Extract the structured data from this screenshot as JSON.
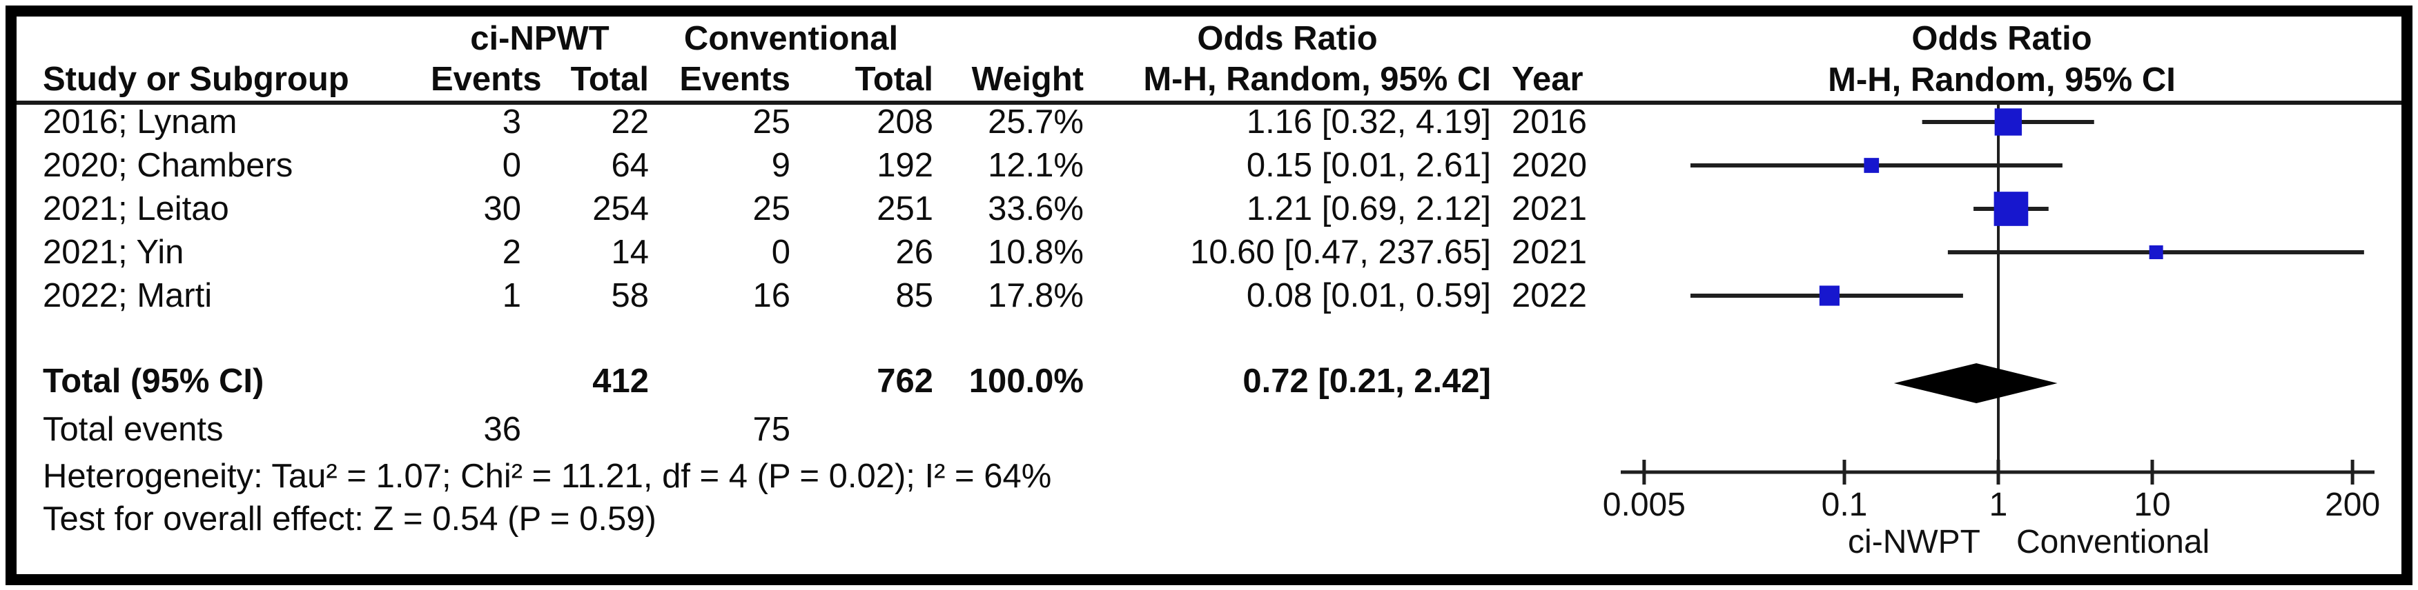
{
  "figure": {
    "kind": "forest-plot-meta-analysis"
  },
  "colors": {
    "marker_blue": "#1717ce",
    "line_dark": "#1f1f1f",
    "diamond_black": "#000000"
  },
  "table": {
    "group_headers": {
      "ci_npwt": "ci-NPWT",
      "conventional": "Conventional",
      "odds_ratio": "Odds Ratio",
      "odds_ratio_plot": "Odds Ratio"
    },
    "col_headers": {
      "study": "Study or Subgroup",
      "events1": "Events",
      "total1": "Total",
      "events2": "Events",
      "total2": "Total",
      "weight": "Weight",
      "mh_ci": "M-H, Random, 95% CI",
      "year": "Year",
      "mh_ci_plot": "M-H, Random, 95% CI"
    },
    "rows": [
      {
        "study": "2016; Lynam",
        "events1": "3",
        "total1": "22",
        "events2": "25",
        "total2": "208",
        "weight": "25.7%",
        "ci": "1.16 [0.32, 4.19]",
        "year": "2016"
      },
      {
        "study": "2020; Chambers",
        "events1": "0",
        "total1": "64",
        "events2": "9",
        "total2": "192",
        "weight": "12.1%",
        "ci": "0.15 [0.01, 2.61]",
        "year": "2020"
      },
      {
        "study": "2021; Leitao",
        "events1": "30",
        "total1": "254",
        "events2": "25",
        "total2": "251",
        "weight": "33.6%",
        "ci": "1.21 [0.69, 2.12]",
        "year": "2021"
      },
      {
        "study": "2021; Yin",
        "events1": "2",
        "total1": "14",
        "events2": "0",
        "total2": "26",
        "weight": "10.8%",
        "ci": "10.60 [0.47, 237.65]",
        "year": "2021"
      },
      {
        "study": "2022; Marti",
        "events1": "1",
        "total1": "58",
        "events2": "16",
        "total2": "85",
        "weight": "17.8%",
        "ci": "0.08 [0.01, 0.59]",
        "year": "2022"
      }
    ],
    "total_row": {
      "label": "Total (95% CI)",
      "total1": "412",
      "total2": "762",
      "weight": "100.0%",
      "ci": "0.72 [0.21, 2.42]"
    },
    "total_events_row": {
      "label": "Total events",
      "events1": "36",
      "events2": "75"
    },
    "footer": {
      "heterogeneity": "Heterogeneity: Tau² = 1.07; Chi² = 11.21, df = 4 (P = 0.02); I² = 64%",
      "overall_effect": "Test for overall effect: Z = 0.54 (P = 0.59)"
    }
  },
  "chart_data": {
    "type": "scatter",
    "subtype": "forest-plot",
    "x_scale": "log10",
    "axis_range": [
      0.005,
      200
    ],
    "axis_ticks": [
      0.005,
      0.1,
      1,
      10,
      200
    ],
    "axis_tick_labels": [
      "0.005",
      "0.1",
      "1",
      "10",
      "200"
    ],
    "null_line": 1,
    "xlabel_left": "ci-NWPT",
    "xlabel_right": "Conventional",
    "marker_color": "#1717ce",
    "studies": [
      {
        "label": "2016; Lynam",
        "or": 1.16,
        "ci_low": 0.32,
        "ci_high": 4.19,
        "weight_pct": 25.7
      },
      {
        "label": "2020; Chambers",
        "or": 0.15,
        "ci_low": 0.01,
        "ci_high": 2.61,
        "weight_pct": 12.1
      },
      {
        "label": "2021; Leitao",
        "or": 1.21,
        "ci_low": 0.69,
        "ci_high": 2.12,
        "weight_pct": 33.6
      },
      {
        "label": "2021; Yin",
        "or": 10.6,
        "ci_low": 0.47,
        "ci_high": 237.65,
        "weight_pct": 10.8
      },
      {
        "label": "2022; Marti",
        "or": 0.08,
        "ci_low": 0.01,
        "ci_high": 0.59,
        "weight_pct": 17.8
      }
    ],
    "total": {
      "label": "Total (95% CI)",
      "or": 0.72,
      "ci_low": 0.21,
      "ci_high": 2.42,
      "weight_pct": 100.0
    }
  }
}
